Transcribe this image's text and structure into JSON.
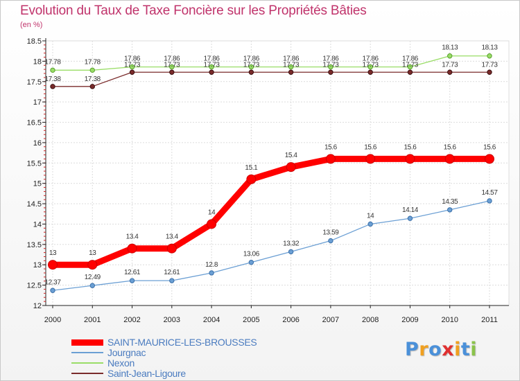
{
  "chart_data": {
    "type": "line",
    "title": "Evolution du Taux de Taxe Foncière sur les Propriétés Bâties",
    "ylabel": "(en %)",
    "xlabel": "",
    "x": [
      "2000",
      "2001",
      "2002",
      "2003",
      "2004",
      "2005",
      "2006",
      "2007",
      "2008",
      "2009",
      "2010",
      "2011"
    ],
    "ylim": [
      12,
      18.5
    ],
    "yticks": [
      "12",
      "12.5",
      "13",
      "13.5",
      "14",
      "14.5",
      "15",
      "15.5",
      "16",
      "16.5",
      "17",
      "17.5",
      "18",
      "18.5"
    ],
    "grid": true,
    "legend_position": "bottom-left",
    "series": [
      {
        "name": "SAINT-MAURICE-LES-BROUSSES",
        "color": "#ff0000",
        "values": [
          13,
          13,
          13.4,
          13.4,
          14,
          15.1,
          15.4,
          15.6,
          15.6,
          15.6,
          15.6,
          15.6
        ],
        "labels": [
          "13",
          "13",
          "13.4",
          "13.4",
          "14",
          "15.1",
          "15.4",
          "15.6",
          "15.6",
          "15.6",
          "15.6",
          "15.6"
        ]
      },
      {
        "name": "Jourgnac",
        "color": "#6b9fd4",
        "values": [
          12.37,
          12.49,
          12.61,
          12.61,
          12.8,
          13.06,
          13.32,
          13.59,
          14,
          14.14,
          14.35,
          14.57
        ],
        "labels": [
          "12.37",
          "12.49",
          "12.61",
          "12.61",
          "12.8",
          "13.06",
          "13.32",
          "13.59",
          "14",
          "14.14",
          "14.35",
          "14.57"
        ]
      },
      {
        "name": "Nexon",
        "color": "#99dd66",
        "values": [
          17.78,
          17.78,
          17.86,
          17.86,
          17.86,
          17.86,
          17.86,
          17.86,
          17.86,
          17.86,
          18.13,
          18.13
        ],
        "labels": [
          "17.78",
          "17.78",
          "17.86",
          "17.86",
          "17.86",
          "17.86",
          "17.86",
          "17.86",
          "17.86",
          "17.86",
          "18.13",
          "18.13"
        ]
      },
      {
        "name": "Saint-Jean-Ligoure",
        "color": "#7a2b2b",
        "values": [
          17.38,
          17.38,
          17.73,
          17.73,
          17.73,
          17.73,
          17.73,
          17.73,
          17.73,
          17.73,
          17.73,
          17.73
        ],
        "labels": [
          "17.38",
          "17.38",
          "17.73",
          "17.73",
          "17.73",
          "17.73",
          "17.73",
          "17.73",
          "17.73",
          "17.73",
          "17.73",
          "17.73"
        ]
      }
    ]
  },
  "logo": {
    "text": "Proxiti",
    "colors": [
      "#4a90d9",
      "#f0a020",
      "#4a90d9",
      "#e03030",
      "#f0a020",
      "#4a90d9",
      "#8bc34a"
    ]
  }
}
